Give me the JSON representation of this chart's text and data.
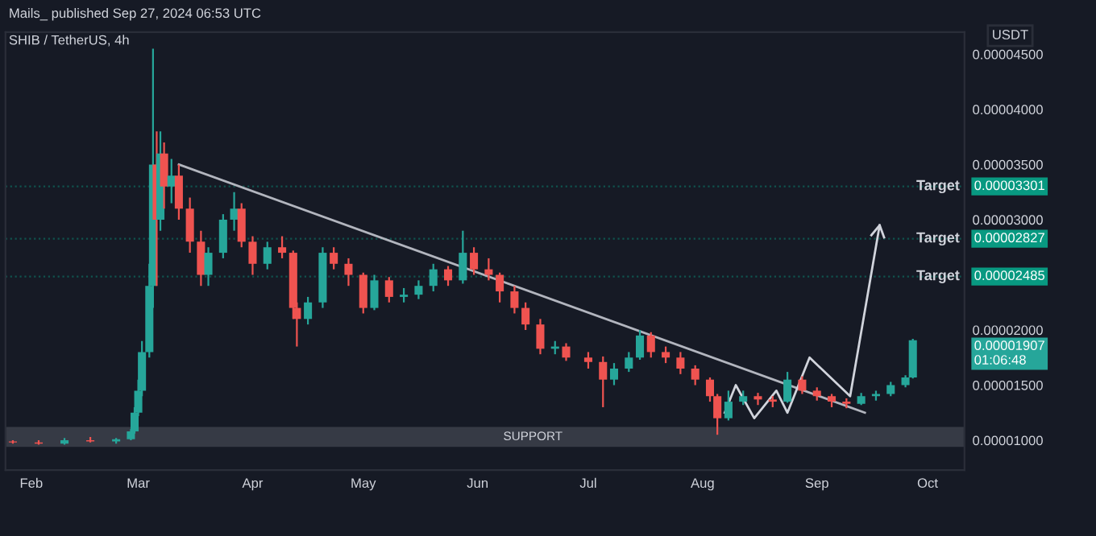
{
  "chart_data": {
    "type": "candlestick",
    "title": "SHIB / TetherUS, 4h",
    "annotations": [
      "Mails_ published Sep 27, 2024 06:53 UTC",
      "USDT",
      "0.00001907\n01:06:48",
      "0.00003301",
      "0.00002827",
      "0.00002485"
    ],
    "x": [
      "2024-01-27",
      "2024-02-03",
      "2024-02-10",
      "2024-02-17",
      "2024-02-24",
      "2024-02-28",
      "2024-02-29",
      "2024-03-01",
      "2024-03-02",
      "2024-03-04",
      "2024-03-05",
      "2024-03-06",
      "2024-03-07",
      "2024-03-08",
      "2024-03-10",
      "2024-03-12",
      "2024-03-15",
      "2024-03-18",
      "2024-03-20",
      "2024-03-24",
      "2024-03-27",
      "2024-03-29",
      "2024-04-01",
      "2024-04-05",
      "2024-04-09",
      "2024-04-12",
      "2024-04-13",
      "2024-04-16",
      "2024-04-20",
      "2024-04-23",
      "2024-04-27",
      "2024-05-01",
      "2024-05-04",
      "2024-05-08",
      "2024-05-12",
      "2024-05-16",
      "2024-05-20",
      "2024-05-24",
      "2024-05-28",
      "2024-05-31",
      "2024-06-04",
      "2024-06-07",
      "2024-06-11",
      "2024-06-14",
      "2024-06-18",
      "2024-06-22",
      "2024-06-25",
      "2024-07-01",
      "2024-07-05",
      "2024-07-08",
      "2024-07-12",
      "2024-07-15",
      "2024-07-18",
      "2024-07-22",
      "2024-07-26",
      "2024-07-30",
      "2024-08-03",
      "2024-08-05",
      "2024-08-08",
      "2024-08-12",
      "2024-08-16",
      "2024-08-20",
      "2024-08-24",
      "2024-08-28",
      "2024-09-01",
      "2024-09-05",
      "2024-09-09",
      "2024-09-13",
      "2024-09-17",
      "2024-09-21",
      "2024-09-25",
      "2024-09-27"
    ],
    "ohlc": [
      [
        9.9e-06,
        1e-05,
        9.7e-06,
        9.8e-06
      ],
      [
        9.8e-06,
        1e-05,
        9.6e-06,
        9.7e-06
      ],
      [
        9.7e-06,
        1.02e-05,
        9.6e-06,
        1e-05
      ],
      [
        1e-05,
        1.03e-05,
        9.8e-06,
        9.9e-06
      ],
      [
        9.9e-06,
        1.02e-05,
        9.7e-06,
        1.01e-05
      ],
      [
        1.01e-05,
        1.1e-05,
        1e-05,
        1.08e-05
      ],
      [
        1.08e-05,
        1.3e-05,
        1.06e-05,
        1.25e-05
      ],
      [
        1.25e-05,
        1.55e-05,
        1.22e-05,
        1.45e-05
      ],
      [
        1.45e-05,
        1.9e-05,
        1.4e-05,
        1.8e-05
      ],
      [
        1.8e-05,
        2.6e-05,
        1.75e-05,
        2.4e-05
      ],
      [
        2.4e-05,
        4.55e-05,
        2.2e-05,
        3.5e-05
      ],
      [
        3.5e-05,
        3.8e-05,
        2.4e-05,
        3e-05
      ],
      [
        3e-05,
        3.8e-05,
        2.9e-05,
        3.6e-05
      ],
      [
        3.6e-05,
        3.7e-05,
        3.1e-05,
        3.3e-05
      ],
      [
        3.3e-05,
        3.55e-05,
        3.15e-05,
        3.4e-05
      ],
      [
        3.4e-05,
        3.5e-05,
        3e-05,
        3.1e-05
      ],
      [
        3.1e-05,
        3.2e-05,
        2.7e-05,
        2.8e-05
      ],
      [
        2.8e-05,
        2.9e-05,
        2.4e-05,
        2.5e-05
      ],
      [
        2.5e-05,
        2.75e-05,
        2.4e-05,
        2.7e-05
      ],
      [
        2.7e-05,
        3.05e-05,
        2.65e-05,
        3e-05
      ],
      [
        3e-05,
        3.25e-05,
        2.9e-05,
        3.1e-05
      ],
      [
        3.1e-05,
        3.15e-05,
        2.75e-05,
        2.8e-05
      ],
      [
        2.8e-05,
        2.85e-05,
        2.5e-05,
        2.6e-05
      ],
      [
        2.6e-05,
        2.8e-05,
        2.55e-05,
        2.75e-05
      ],
      [
        2.75e-05,
        2.85e-05,
        2.65e-05,
        2.7e-05
      ],
      [
        2.7e-05,
        2.72e-05,
        2.1e-05,
        2.2e-05
      ],
      [
        2.2e-05,
        2.25e-05,
        1.85e-05,
        2.1e-05
      ],
      [
        2.1e-05,
        2.3e-05,
        2.05e-05,
        2.25e-05
      ],
      [
        2.25e-05,
        2.75e-05,
        2.2e-05,
        2.7e-05
      ],
      [
        2.7e-05,
        2.75e-05,
        2.55e-05,
        2.6e-05
      ],
      [
        2.6e-05,
        2.65e-05,
        2.4e-05,
        2.5e-05
      ],
      [
        2.5e-05,
        2.52e-05,
        2.15e-05,
        2.2e-05
      ],
      [
        2.2e-05,
        2.5e-05,
        2.18e-05,
        2.45e-05
      ],
      [
        2.45e-05,
        2.48e-05,
        2.25e-05,
        2.3e-05
      ],
      [
        2.3e-05,
        2.38e-05,
        2.25e-05,
        2.32e-05
      ],
      [
        2.32e-05,
        2.45e-05,
        2.28e-05,
        2.4e-05
      ],
      [
        2.4e-05,
        2.6e-05,
        2.35e-05,
        2.55e-05
      ],
      [
        2.55e-05,
        2.58e-05,
        2.4e-05,
        2.45e-05
      ],
      [
        2.45e-05,
        2.9e-05,
        2.42e-05,
        2.7e-05
      ],
      [
        2.7e-05,
        2.75e-05,
        2.5e-05,
        2.55e-05
      ],
      [
        2.55e-05,
        2.65e-05,
        2.45e-05,
        2.5e-05
      ],
      [
        2.5e-05,
        2.52e-05,
        2.25e-05,
        2.35e-05
      ],
      [
        2.35e-05,
        2.4e-05,
        2.15e-05,
        2.2e-05
      ],
      [
        2.2e-05,
        2.25e-05,
        2e-05,
        2.05e-05
      ],
      [
        2.05e-05,
        2.1e-05,
        1.78e-05,
        1.83e-05
      ],
      [
        1.83e-05,
        1.9e-05,
        1.78e-05,
        1.85e-05
      ],
      [
        1.85e-05,
        1.88e-05,
        1.72e-05,
        1.75e-05
      ],
      [
        1.75e-05,
        1.8e-05,
        1.65e-05,
        1.71e-05
      ],
      [
        1.71e-05,
        1.76e-05,
        1.3e-05,
        1.55e-05
      ],
      [
        1.55e-05,
        1.7e-05,
        1.5e-05,
        1.65e-05
      ],
      [
        1.65e-05,
        1.8e-05,
        1.62e-05,
        1.75e-05
      ],
      [
        1.75e-05,
        2e-05,
        1.73e-05,
        1.95e-05
      ],
      [
        1.95e-05,
        1.98e-05,
        1.75e-05,
        1.8e-05
      ],
      [
        1.8e-05,
        1.85e-05,
        1.7e-05,
        1.75e-05
      ],
      [
        1.75e-05,
        1.8e-05,
        1.6e-05,
        1.65e-05
      ],
      [
        1.65e-05,
        1.68e-05,
        1.5e-05,
        1.55e-05
      ],
      [
        1.55e-05,
        1.57e-05,
        1.35e-05,
        1.4e-05
      ],
      [
        1.4e-05,
        1.42e-05,
        1.05e-05,
        1.2e-05
      ],
      [
        1.2e-05,
        1.45e-05,
        1.18e-05,
        1.35e-05
      ],
      [
        1.35e-05,
        1.45e-05,
        1.32e-05,
        1.4e-05
      ],
      [
        1.4e-05,
        1.43e-05,
        1.32e-05,
        1.37e-05
      ],
      [
        1.37e-05,
        1.4e-05,
        1.3e-05,
        1.35e-05
      ],
      [
        1.35e-05,
        1.62e-05,
        1.34e-05,
        1.55e-05
      ],
      [
        1.55e-05,
        1.58e-05,
        1.42e-05,
        1.45e-05
      ],
      [
        1.45e-05,
        1.48e-05,
        1.36e-05,
        1.4e-05
      ],
      [
        1.4e-05,
        1.42e-05,
        1.3e-05,
        1.35e-05
      ],
      [
        1.35e-05,
        1.38e-05,
        1.29e-05,
        1.33e-05
      ],
      [
        1.33e-05,
        1.43e-05,
        1.32e-05,
        1.4e-05
      ],
      [
        1.4e-05,
        1.45e-05,
        1.36e-05,
        1.42e-05
      ],
      [
        1.42e-05,
        1.53e-05,
        1.4e-05,
        1.5e-05
      ],
      [
        1.5e-05,
        1.59e-05,
        1.48e-05,
        1.57e-05
      ],
      [
        1.57e-05,
        1.92e-05,
        1.56e-05,
        1.907e-05
      ]
    ],
    "series": [
      {
        "type": "line",
        "color": "#b2b5be",
        "x": [
          "2024-03-12",
          "2024-09-14"
        ],
        "values": [
          3.5e-05,
          1.25e-05
        ]
      },
      {
        "type": "line",
        "color": "#d1d4dc",
        "x": [
          "2024-08-07",
          "2024-08-10",
          "2024-08-15",
          "2024-08-21",
          "2024-08-24",
          "2024-08-30",
          "2024-09-10",
          "2024-09-18"
        ],
        "values": [
          1.25e-05,
          1.5e-05,
          1.2e-05,
          1.45e-05,
          1.25e-05,
          1.75e-05,
          1.4e-05,
          2.95e-05
        ]
      }
    ],
    "bands": [
      {
        "axis": "y",
        "from": 9.5e-06,
        "to": 1.11e-05,
        "label": "SUPPORT",
        "color": "#363a45"
      }
    ],
    "ref_lines": [
      {
        "axis": "y",
        "value": 3.301e-05,
        "label": "Target",
        "color": "#089981"
      },
      {
        "axis": "y",
        "value": 2.827e-05,
        "label": "Target",
        "color": "#089981"
      },
      {
        "axis": "y",
        "value": 2.485e-05,
        "label": "Target",
        "color": "#089981"
      }
    ],
    "xlim": [
      "2024-01-25",
      "2024-10-11"
    ],
    "xticks": [
      {
        "value": "2024-02-01",
        "label": "Feb"
      },
      {
        "value": "2024-03-01",
        "label": "Mar"
      },
      {
        "value": "2024-04-01",
        "label": "Apr"
      },
      {
        "value": "2024-05-01",
        "label": "May"
      },
      {
        "value": "2024-06-01",
        "label": "Jun"
      },
      {
        "value": "2024-07-01",
        "label": "Jul"
      },
      {
        "value": "2024-08-01",
        "label": "Aug"
      },
      {
        "value": "2024-09-01",
        "label": "Sep"
      },
      {
        "value": "2024-10-01",
        "label": "Oct"
      }
    ],
    "ylim": [
      7.3e-06,
      4.7e-05
    ],
    "yticks": [
      {
        "value": 1e-05,
        "label": "0.00001000"
      },
      {
        "value": 1.5e-05,
        "label": "0.00001500"
      },
      {
        "value": 2e-05,
        "label": "0.00002000"
      },
      {
        "value": 2.5e-05,
        "label": null
      },
      {
        "value": 3e-05,
        "label": "0.00003000"
      },
      {
        "value": 3.5e-05,
        "label": "0.00003500"
      },
      {
        "value": 4e-05,
        "label": "0.00004000"
      },
      {
        "value": 4.5e-05,
        "label": "0.00004500"
      }
    ],
    "grid": false
  }
}
